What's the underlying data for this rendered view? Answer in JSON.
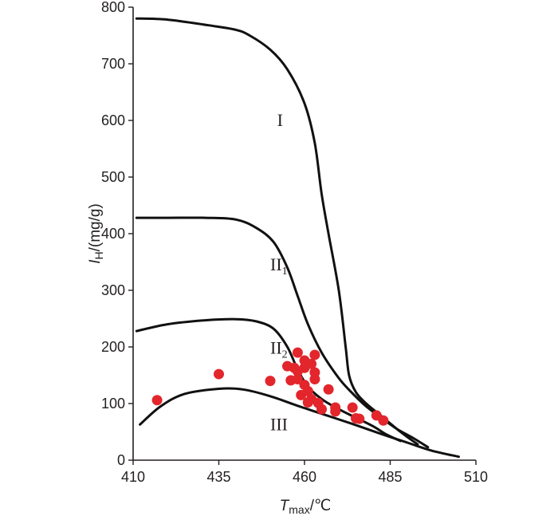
{
  "chart_data": {
    "type": "scatter",
    "xlabel": {
      "main": "T",
      "sub": "max",
      "unit": "/℃"
    },
    "ylabel": {
      "main": "I",
      "sub": "H",
      "unit": "/(mg/g)"
    },
    "xlim": [
      410,
      510
    ],
    "ylim": [
      0,
      800
    ],
    "xticks": [
      "410",
      "435",
      "460",
      "485",
      "510"
    ],
    "yticks": [
      "0",
      "100",
      "200",
      "300",
      "400",
      "500",
      "600",
      "700",
      "800"
    ],
    "grid": false,
    "regions": [
      {
        "main": "I",
        "sub": "",
        "x": 452,
        "y": 590
      },
      {
        "main": "II",
        "sub": "1",
        "x": 450,
        "y": 335
      },
      {
        "main": "II",
        "sub": "2",
        "x": 450,
        "y": 188
      },
      {
        "main": "III",
        "sub": "",
        "x": 450,
        "y": 53
      }
    ],
    "boundary_curves": [
      {
        "points": [
          [
            411,
            780
          ],
          [
            420,
            778
          ],
          [
            432,
            768
          ],
          [
            440,
            760
          ],
          [
            444,
            750
          ],
          [
            450,
            725
          ],
          [
            455,
            690
          ],
          [
            460,
            630
          ],
          [
            463,
            560
          ],
          [
            465,
            470
          ],
          [
            467,
            400
          ],
          [
            470,
            300
          ],
          [
            472,
            200
          ],
          [
            473,
            150
          ],
          [
            475,
            120
          ],
          [
            478,
            100
          ],
          [
            482,
            80
          ],
          [
            488,
            50
          ],
          [
            493,
            28
          ]
        ]
      },
      {
        "points": [
          [
            411,
            428
          ],
          [
            420,
            428
          ],
          [
            431,
            428
          ],
          [
            440,
            425
          ],
          [
            446,
            410
          ],
          [
            451,
            385
          ],
          [
            455,
            340
          ],
          [
            458,
            290
          ],
          [
            461,
            240
          ],
          [
            465,
            190
          ],
          [
            470,
            145
          ],
          [
            474,
            118
          ],
          [
            478,
            95
          ],
          [
            483,
            72
          ],
          [
            487,
            55
          ],
          [
            492,
            38
          ],
          [
            496,
            23
          ]
        ]
      },
      {
        "points": [
          [
            411,
            228
          ],
          [
            420,
            240
          ],
          [
            431,
            247
          ],
          [
            440,
            249
          ],
          [
            446,
            245
          ],
          [
            451,
            232
          ],
          [
            455,
            200
          ],
          [
            458,
            160
          ],
          [
            461,
            130
          ],
          [
            465,
            108
          ],
          [
            470,
            90
          ],
          [
            475,
            75
          ],
          [
            480,
            60
          ],
          [
            484,
            45
          ],
          [
            488,
            34
          ]
        ]
      },
      {
        "points": [
          [
            412,
            63
          ],
          [
            418,
            95
          ],
          [
            425,
            117
          ],
          [
            435,
            126
          ],
          [
            442,
            125
          ],
          [
            450,
            113
          ],
          [
            458,
            96
          ],
          [
            466,
            80
          ],
          [
            474,
            64
          ],
          [
            482,
            47
          ],
          [
            490,
            31
          ],
          [
            497,
            17
          ],
          [
            505,
            6
          ]
        ]
      }
    ],
    "series": [
      {
        "marker_color": "#e2262c",
        "points": [
          [
            417,
            106
          ],
          [
            435,
            152
          ],
          [
            450,
            140
          ],
          [
            455,
            166
          ],
          [
            456,
            141
          ],
          [
            457,
            163
          ],
          [
            458,
            190
          ],
          [
            458,
            157
          ],
          [
            458,
            143
          ],
          [
            459,
            115
          ],
          [
            460,
            176
          ],
          [
            460,
            163
          ],
          [
            460,
            133
          ],
          [
            461,
            122
          ],
          [
            461,
            102
          ],
          [
            462,
            170
          ],
          [
            463,
            186
          ],
          [
            463,
            143
          ],
          [
            463,
            155
          ],
          [
            462,
            108
          ],
          [
            464,
            101
          ],
          [
            465,
            90
          ],
          [
            467,
            125
          ],
          [
            469,
            86
          ],
          [
            469,
            93
          ],
          [
            474,
            93
          ],
          [
            475,
            74
          ],
          [
            476,
            73
          ],
          [
            481,
            79
          ],
          [
            483,
            70
          ]
        ]
      }
    ]
  }
}
